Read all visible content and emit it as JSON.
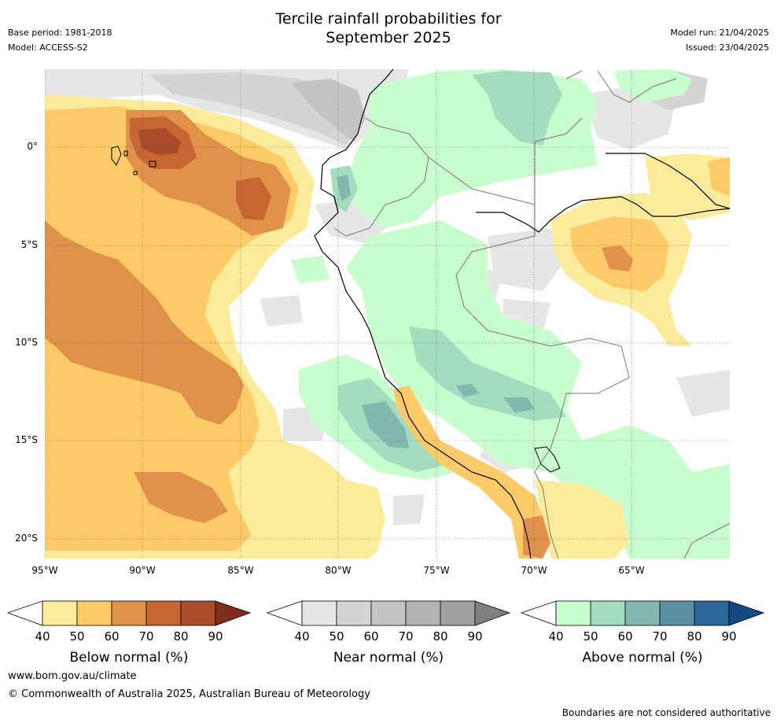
{
  "header": {
    "title_line1": "Tercile rainfall probabilities for",
    "title_line2": "September 2025",
    "base_period": "Base period: 1981-2018",
    "model": "Model: ACCESS-S2",
    "model_run": "Model run: 21/04/2025",
    "issued": "Issued: 23/04/2025"
  },
  "map": {
    "lat_labels": [
      "0°",
      "5°S",
      "10°S",
      "15°S",
      "20°S"
    ],
    "lon_labels": [
      "95°W",
      "90°W",
      "85°W",
      "80°W",
      "75°W",
      "70°W",
      "65°W"
    ],
    "colors": {
      "below": [
        "#fdeb9c",
        "#fdca68",
        "#e0924a",
        "#c86633",
        "#a84c2b",
        "#7f2d1c"
      ],
      "near": [
        "#e6e6e6",
        "#d4d4d4",
        "#c4c4c4",
        "#b3b3b3",
        "#a0a0a0",
        "#808080"
      ],
      "above": [
        "#c8fdce",
        "#a4dcc0",
        "#83b7b0",
        "#5c91a2",
        "#2e6699",
        "#154a80"
      ]
    }
  },
  "legends": [
    {
      "title": "Below normal (%)",
      "ticks": [
        "40",
        "50",
        "60",
        "70",
        "80",
        "90"
      ]
    },
    {
      "title": "Near normal (%)",
      "ticks": [
        "40",
        "50",
        "60",
        "70",
        "80",
        "90"
      ]
    },
    {
      "title": "Above normal (%)",
      "ticks": [
        "40",
        "50",
        "60",
        "70",
        "80",
        "90"
      ]
    }
  ],
  "footer": {
    "url": "www.bom.gov.au/climate",
    "copyright": "© Commonwealth of Australia 2025, Australian Bureau of Meteorology",
    "note": "Boundaries are not considered authoritative"
  }
}
